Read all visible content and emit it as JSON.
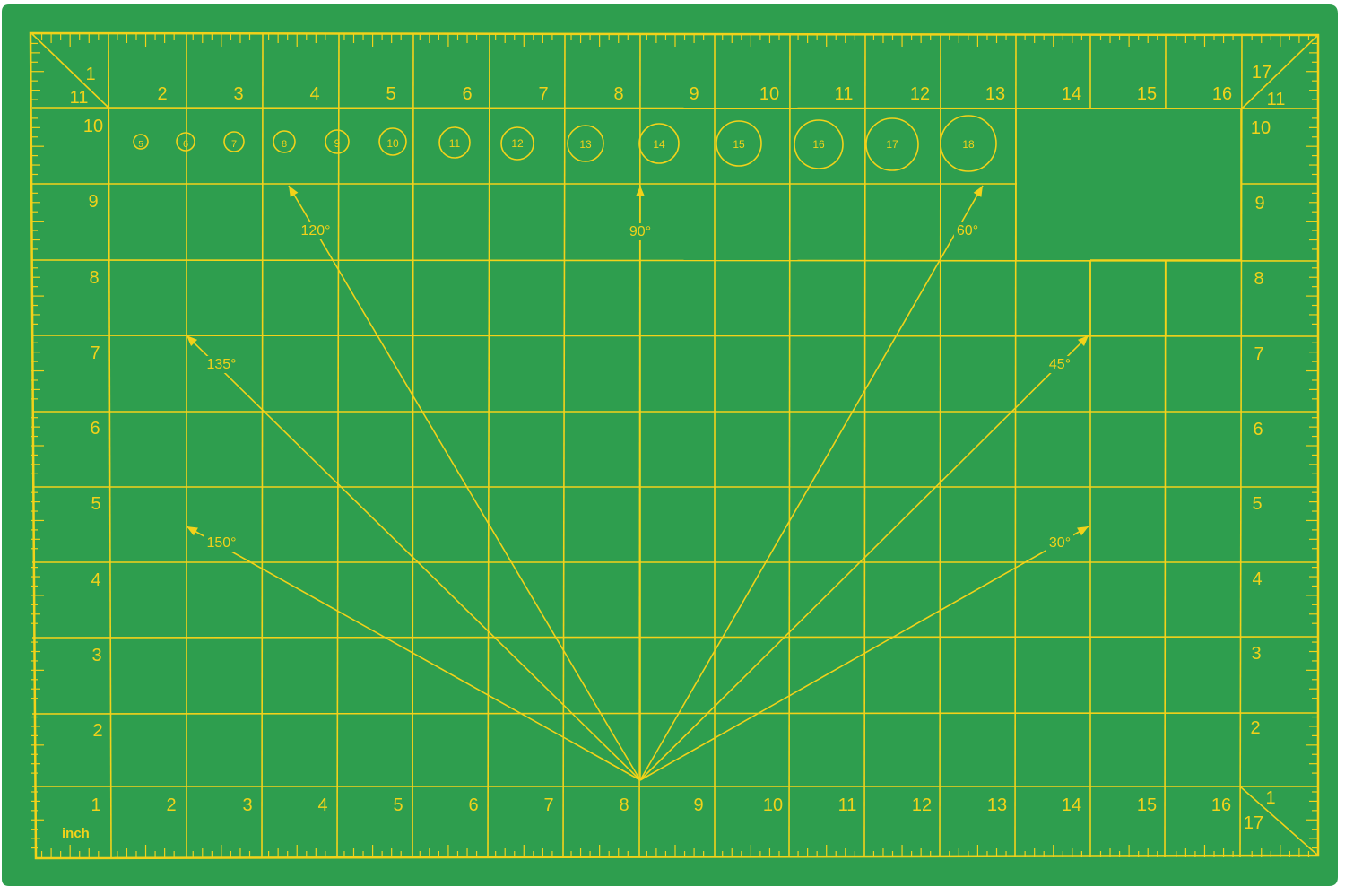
{
  "colors": {
    "mat": "#2e9e4e",
    "mat_edge": "#2a9448",
    "line": "#f2d21a",
    "text": "#f2d21a",
    "background": "#ffffff"
  },
  "top_labels": [
    "2",
    "3",
    "4",
    "5",
    "6",
    "7",
    "8",
    "9",
    "10",
    "11",
    "12",
    "13",
    "14",
    "15",
    "16"
  ],
  "bottom_labels": [
    "1",
    "2",
    "3",
    "4",
    "5",
    "6",
    "7",
    "8",
    "9",
    "10",
    "11",
    "12",
    "13",
    "14",
    "15",
    "16"
  ],
  "left_labels": [
    "10",
    "9",
    "8",
    "7",
    "6",
    "5",
    "4",
    "3",
    "2"
  ],
  "right_labels": [
    "10",
    "9",
    "8",
    "7",
    "6",
    "5",
    "4",
    "3",
    "2"
  ],
  "corner_labels": {
    "top_left_a": "1",
    "top_left_b": "11",
    "top_right_a": "17",
    "top_right_b": "11",
    "bottom_right_a": "1",
    "bottom_right_b": "17"
  },
  "unit_label": "inch",
  "circle_labels": [
    "5",
    "6",
    "7",
    "8",
    "9",
    "10",
    "11",
    "12",
    "13",
    "14",
    "15",
    "16",
    "17",
    "18"
  ],
  "angle_labels": [
    "120°",
    "90°",
    "60°",
    "135°",
    "45°",
    "150°",
    "30°"
  ]
}
